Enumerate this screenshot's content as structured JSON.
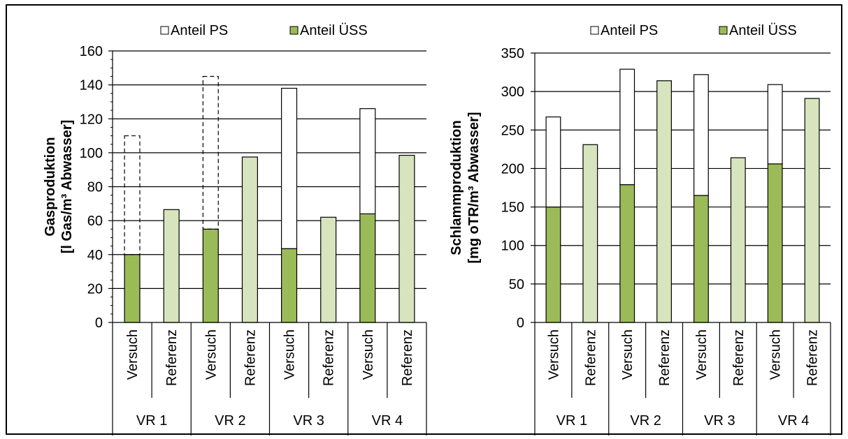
{
  "colors": {
    "uss_versuch": "#9BBB59",
    "uss_referenz": "#D7E4BD",
    "ps": "#FFFFFF",
    "stroke": "#000000",
    "grid": "#000000"
  },
  "chart_data": [
    {
      "type": "bar",
      "stacked": true,
      "ylabel_line1": "Gasproduktion",
      "ylabel_line2": "[l Gas/m³ Abwasser]",
      "ylim": [
        0,
        160
      ],
      "yticks": [
        0,
        20,
        40,
        60,
        80,
        100,
        120,
        140,
        160
      ],
      "grid": true,
      "legend": {
        "placement": "top",
        "entries": [
          "Anteil PS",
          "Anteil ÜSS"
        ]
      },
      "categories": [
        "Versuch",
        "Referenz",
        "Versuch",
        "Referenz",
        "Versuch",
        "Referenz",
        "Versuch",
        "Referenz"
      ],
      "groups": [
        "VR 1",
        "VR 2",
        "VR 3",
        "VR 4"
      ],
      "series": [
        {
          "name": "Anteil ÜSS",
          "values": [
            40,
            66.5,
            55,
            97.5,
            43.5,
            62,
            64,
            98.5
          ]
        },
        {
          "name": "Anteil PS",
          "values": [
            0,
            0,
            0,
            0,
            94.5,
            0,
            62,
            0
          ]
        }
      ],
      "dashed_totals": [
        110,
        null,
        145,
        null,
        null,
        null,
        null,
        null
      ]
    },
    {
      "type": "bar",
      "stacked": true,
      "ylabel_line1": "Schlammproduktion",
      "ylabel_line2": "[mg oTR/m³ Abwasser]",
      "ylim": [
        0,
        350
      ],
      "yticks": [
        0,
        50,
        100,
        150,
        200,
        250,
        300,
        350
      ],
      "grid": true,
      "legend": {
        "placement": "top",
        "entries": [
          "Anteil PS",
          "Anteil ÜSS"
        ]
      },
      "categories": [
        "Versuch",
        "Referenz",
        "Versuch",
        "Referenz",
        "Versuch",
        "Referenz",
        "Versuch",
        "Referenz"
      ],
      "groups": [
        "VR 1",
        "VR 2",
        "VR 3",
        "VR 4"
      ],
      "series": [
        {
          "name": "Anteil ÜSS",
          "values": [
            150,
            231,
            179,
            314,
            165,
            214,
            206,
            291
          ]
        },
        {
          "name": "Anteil PS",
          "values": [
            117,
            0,
            150,
            0,
            157,
            0,
            103,
            0
          ]
        }
      ]
    }
  ]
}
